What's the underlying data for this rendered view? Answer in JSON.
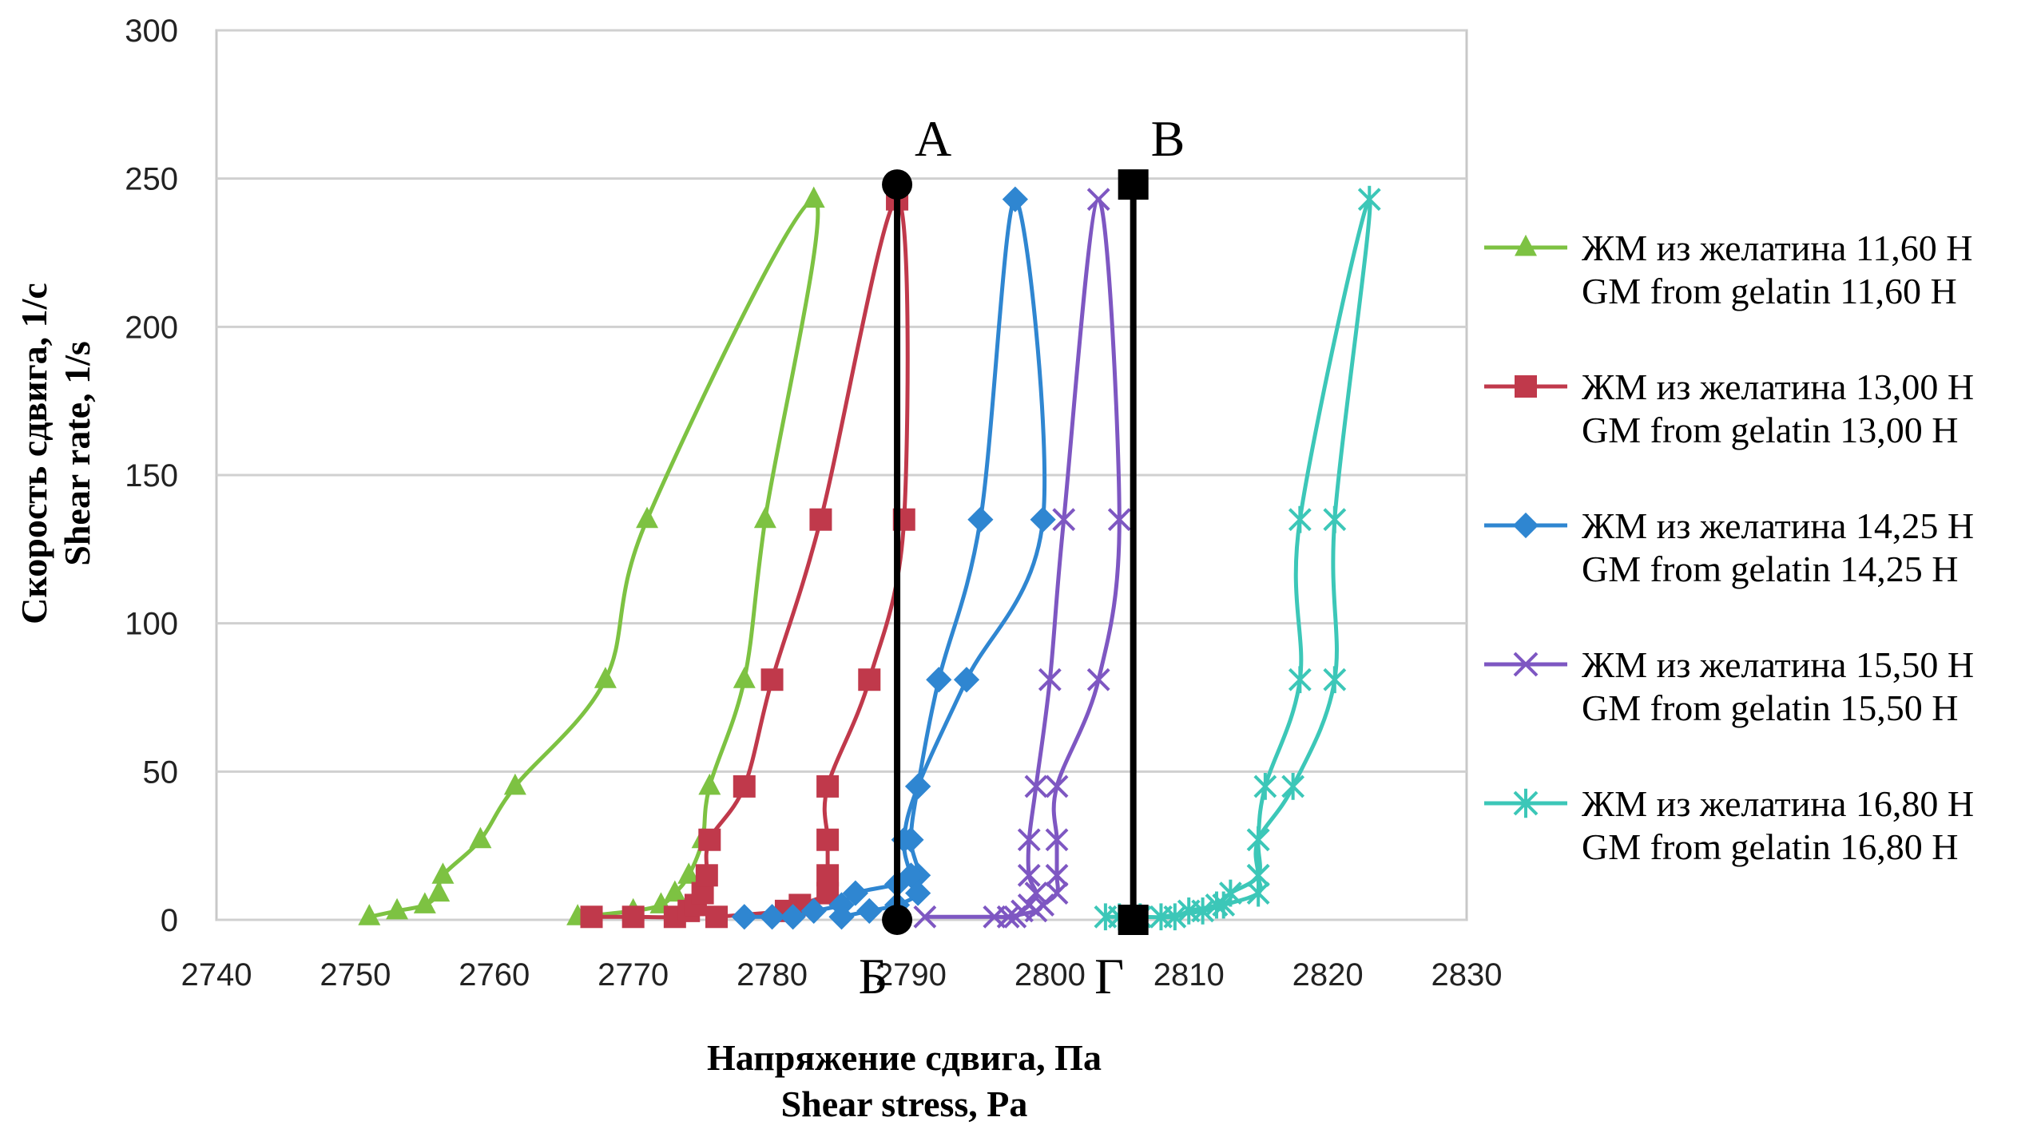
{
  "chart_data": {
    "type": "line",
    "title": "",
    "xlabel": [
      "Напряжение сдвига, Па",
      "Shear stress, Pa"
    ],
    "ylabel": [
      "Скорость сдвига, 1/с",
      "Shear rate, 1/s"
    ],
    "xlim": [
      2740,
      2830
    ],
    "ylim": [
      0,
      300
    ],
    "xticks": [
      2740,
      2750,
      2760,
      2770,
      2780,
      2790,
      2800,
      2810,
      2820,
      2830
    ],
    "yticks": [
      0,
      50,
      100,
      150,
      200,
      250,
      300
    ],
    "grid": "horizontal",
    "legend_position": "right",
    "series": [
      {
        "name": [
          "ЖМ из желатина 11,60 Н",
          "GM from gelatin 11,60 Н"
        ],
        "color": "#7dc242",
        "marker": "triangle",
        "points": [
          [
            2751,
            1
          ],
          [
            2753,
            3
          ],
          [
            2755,
            5
          ],
          [
            2756,
            9
          ],
          [
            2756.3,
            15
          ],
          [
            2759,
            27
          ],
          [
            2761.5,
            45
          ],
          [
            2768,
            81
          ],
          [
            2771,
            135
          ],
          [
            2783,
            243
          ],
          [
            2779.5,
            135
          ],
          [
            2778,
            81
          ],
          [
            2775.5,
            45
          ],
          [
            2775,
            27
          ],
          [
            2774,
            15
          ],
          [
            2773,
            9
          ],
          [
            2772,
            5
          ],
          [
            2770,
            3
          ],
          [
            2766,
            1
          ]
        ]
      },
      {
        "name": [
          "ЖМ из желатина 13,00 Н",
          "GM from gelatin 13,00 Н"
        ],
        "color": "#c0394b",
        "marker": "square",
        "points": [
          [
            2767,
            1
          ],
          [
            2770,
            1
          ],
          [
            2773,
            1
          ],
          [
            2774,
            3
          ],
          [
            2774.5,
            5
          ],
          [
            2775,
            9
          ],
          [
            2775.3,
            15
          ],
          [
            2775.5,
            27
          ],
          [
            2778,
            45
          ],
          [
            2780,
            81
          ],
          [
            2783.5,
            135
          ],
          [
            2789,
            243
          ],
          [
            2789.5,
            135
          ],
          [
            2787,
            81
          ],
          [
            2784,
            45
          ],
          [
            2784,
            27
          ],
          [
            2784,
            15
          ],
          [
            2784,
            9
          ],
          [
            2782,
            5
          ],
          [
            2781,
            3
          ],
          [
            2776,
            1
          ]
        ]
      },
      {
        "name": [
          "ЖМ из желатина 14,25 Н",
          "GM from gelatin 14,25 Н"
        ],
        "color": "#2f86d1",
        "marker": "diamond",
        "points": [
          [
            2778,
            1
          ],
          [
            2780,
            1
          ],
          [
            2781.5,
            1
          ],
          [
            2783,
            3
          ],
          [
            2785,
            5
          ],
          [
            2786,
            9
          ],
          [
            2789,
            12
          ],
          [
            2790.5,
            15
          ],
          [
            2790,
            27
          ],
          [
            2790.5,
            45
          ],
          [
            2792,
            81
          ],
          [
            2795,
            135
          ],
          [
            2797.5,
            243
          ],
          [
            2799.5,
            135
          ],
          [
            2794,
            81
          ],
          [
            2790.5,
            45
          ],
          [
            2789.5,
            27
          ],
          [
            2790,
            15
          ],
          [
            2790.5,
            9
          ],
          [
            2789,
            5
          ],
          [
            2787,
            3
          ],
          [
            2785,
            1
          ]
        ]
      },
      {
        "name": [
          "ЖМ из желатина 15,50 Н",
          "GM from gelatin 15,50 Н"
        ],
        "color": "#7e57c2",
        "marker": "x",
        "points": [
          [
            2791,
            1
          ],
          [
            2796,
            1
          ],
          [
            2797.5,
            1
          ],
          [
            2798,
            3
          ],
          [
            2798.5,
            5
          ],
          [
            2799,
            9
          ],
          [
            2798.5,
            15
          ],
          [
            2798.5,
            27
          ],
          [
            2799,
            45
          ],
          [
            2800,
            81
          ],
          [
            2801,
            135
          ],
          [
            2803.5,
            243
          ],
          [
            2805,
            135
          ],
          [
            2803.5,
            81
          ],
          [
            2800.5,
            45
          ],
          [
            2800.5,
            27
          ],
          [
            2800.5,
            15
          ],
          [
            2800.5,
            9
          ],
          [
            2799.5,
            5
          ],
          [
            2799,
            3
          ],
          [
            2797,
            1
          ]
        ]
      },
      {
        "name": [
          "ЖМ из желатина 16,80 Н",
          "GM from gelatin 16,80 Н"
        ],
        "color": "#3cc7b8",
        "marker": "star",
        "points": [
          [
            2804,
            1
          ],
          [
            2805,
            1
          ],
          [
            2806.5,
            1
          ],
          [
            2809,
            1
          ],
          [
            2810,
            3
          ],
          [
            2812,
            5
          ],
          [
            2813,
            9
          ],
          [
            2815,
            15
          ],
          [
            2815,
            27
          ],
          [
            2815.5,
            45
          ],
          [
            2818,
            81
          ],
          [
            2818,
            135
          ],
          [
            2823,
            243
          ],
          [
            2820.5,
            135
          ],
          [
            2820.5,
            81
          ],
          [
            2817.5,
            45
          ],
          [
            2815,
            27
          ],
          [
            2815,
            15
          ],
          [
            2815,
            9
          ],
          [
            2812.5,
            5
          ],
          [
            2811,
            3
          ],
          [
            2808,
            1
          ]
        ]
      }
    ],
    "reference_lines": [
      {
        "label_top": "А",
        "label_bottom": "Б",
        "x": 2789,
        "y_from": 0,
        "y_to": 248,
        "marker": "circle",
        "color": "#000000"
      },
      {
        "label_top": "В",
        "label_bottom": "Г",
        "x": 2806,
        "y_from": 0,
        "y_to": 248,
        "marker": "square",
        "color": "#000000"
      }
    ]
  }
}
